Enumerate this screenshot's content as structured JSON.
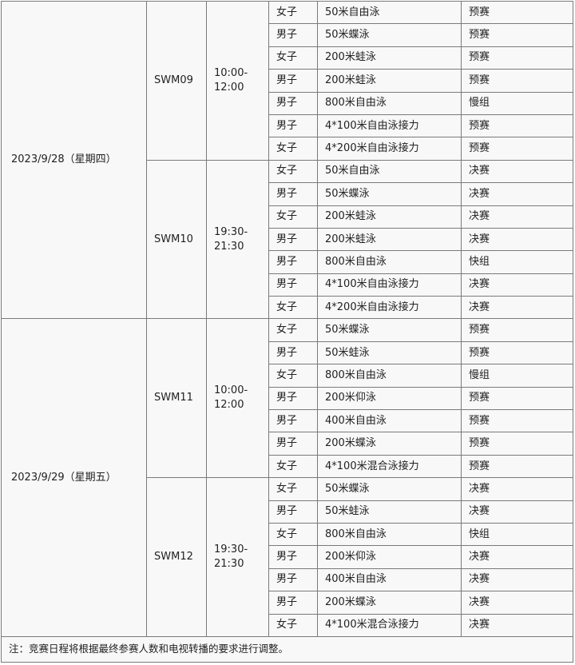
{
  "days": [
    {
      "date": "2023/9/28（星期四）",
      "sessions": [
        {
          "code": "SWM09",
          "time_start": "10:00-",
          "time_end": "12:00",
          "events": [
            [
              "女子",
              "50米自由泳",
              "预赛"
            ],
            [
              "男子",
              "50米蝶泳",
              "预赛"
            ],
            [
              "女子",
              "200米蛙泳",
              "预赛"
            ],
            [
              "男子",
              "200米蛙泳",
              "预赛"
            ],
            [
              "男子",
              "800米自由泳",
              "慢组"
            ],
            [
              "男子",
              "4*100米自由泳接力",
              "预赛"
            ],
            [
              "女子",
              "4*200米自由泳接力",
              "预赛"
            ]
          ]
        },
        {
          "code": "SWM10",
          "time_start": "19:30-",
          "time_end": "21:30",
          "events": [
            [
              "女子",
              "50米自由泳",
              "决赛"
            ],
            [
              "男子",
              "50米蝶泳",
              "决赛"
            ],
            [
              "女子",
              "200米蛙泳",
              "决赛"
            ],
            [
              "男子",
              "200米蛙泳",
              "决赛"
            ],
            [
              "男子",
              "800米自由泳",
              "快组"
            ],
            [
              "男子",
              "4*100米自由泳接力",
              "决赛"
            ],
            [
              "女子",
              "4*200米自由泳接力",
              "决赛"
            ]
          ]
        }
      ]
    },
    {
      "date": "2023/9/29（星期五）",
      "sessions": [
        {
          "code": "SWM11",
          "time_start": "10:00-",
          "time_end": "12:00",
          "events": [
            [
              "女子",
              "50米蝶泳",
              "预赛"
            ],
            [
              "男子",
              "50米蛙泳",
              "预赛"
            ],
            [
              "女子",
              "800米自由泳",
              "慢组"
            ],
            [
              "男子",
              "200米仰泳",
              "预赛"
            ],
            [
              "男子",
              "400米自由泳",
              "预赛"
            ],
            [
              "男子",
              "200米蝶泳",
              "预赛"
            ],
            [
              "女子",
              "4*100米混合泳接力",
              "预赛"
            ]
          ]
        },
        {
          "code": "SWM12",
          "time_start": "19:30-",
          "time_end": "21:30",
          "events": [
            [
              "女子",
              "50米蝶泳",
              "决赛"
            ],
            [
              "男子",
              "50米蛙泳",
              "决赛"
            ],
            [
              "女子",
              "800米自由泳",
              "快组"
            ],
            [
              "男子",
              "200米仰泳",
              "决赛"
            ],
            [
              "男子",
              "400米自由泳",
              "决赛"
            ],
            [
              "男子",
              "200米蝶泳",
              "决赛"
            ],
            [
              "女子",
              "4*100米混合泳接力",
              "决赛"
            ]
          ]
        }
      ]
    }
  ],
  "note": "注：竞赛日程将根据最终参赛人数和电视转播的要求进行调整。"
}
